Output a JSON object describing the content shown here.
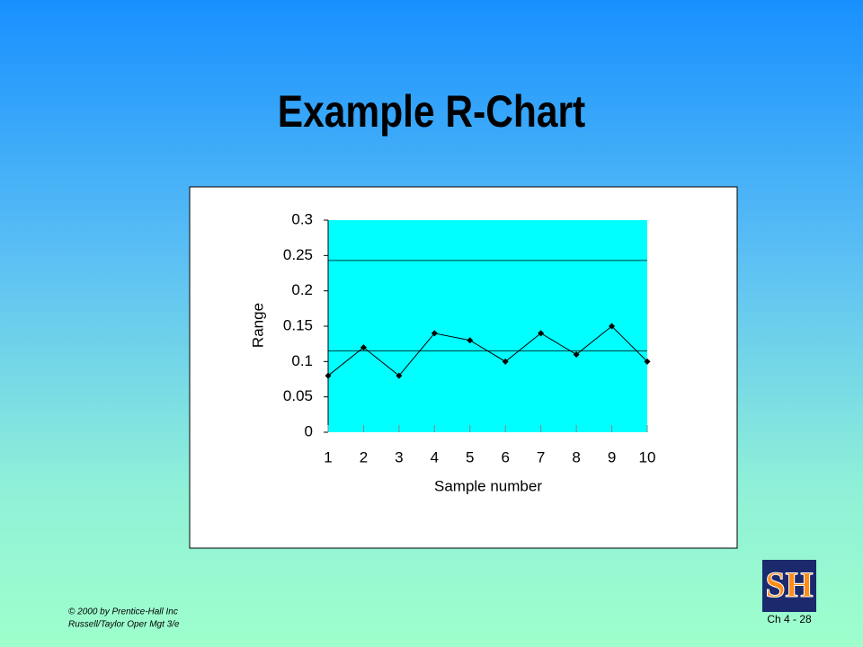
{
  "title": "Example R-Chart",
  "footer": {
    "copyright": "© 2000 by Prentice-Hall Inc",
    "book": "Russell/Taylor Oper Mgt 3/e",
    "page": "Ch 4 - 28",
    "logo": "SH"
  },
  "chart_data": {
    "type": "line",
    "x_label": "Sample number",
    "y_label": "Range",
    "categories": [
      "1",
      "2",
      "3",
      "4",
      "5",
      "6",
      "7",
      "8",
      "9",
      "10"
    ],
    "values": [
      0.08,
      0.12,
      0.08,
      0.14,
      0.13,
      0.1,
      0.14,
      0.11,
      0.15,
      0.1
    ],
    "color": "#000000",
    "hlines": [
      0.243,
      0.115
    ],
    "ylim": [
      0,
      0.3
    ],
    "yticks": [
      0,
      0.05,
      0.1,
      0.15,
      0.2,
      0.25,
      0.3
    ],
    "plot_background": "#00ffff"
  }
}
